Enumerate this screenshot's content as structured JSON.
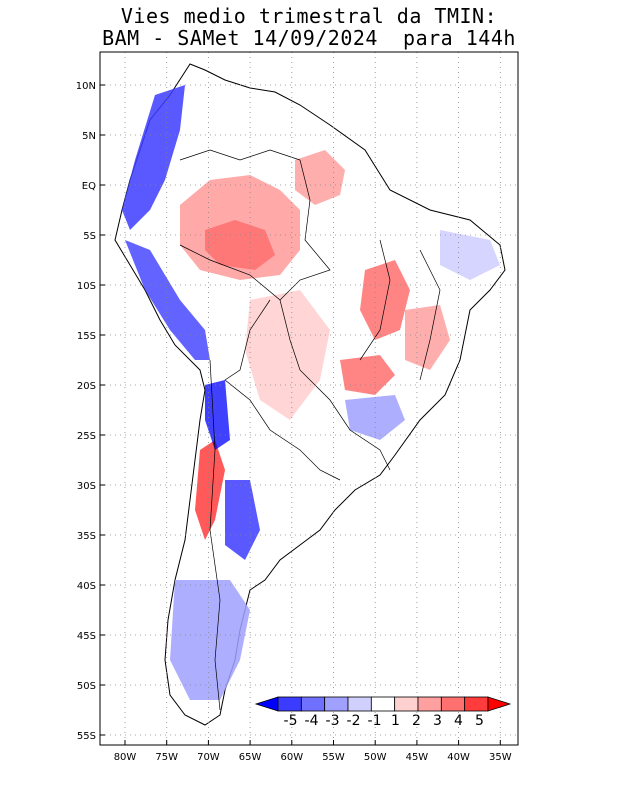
{
  "title": {
    "line1": "Vies medio trimestral da TMIN:",
    "line2": "BAM - SAMet 14/09/2024  para 144h"
  },
  "map": {
    "region": "South America",
    "lat_labels": [
      "10N",
      "5N",
      "EQ",
      "5S",
      "10S",
      "15S",
      "20S",
      "25S",
      "30S",
      "35S",
      "40S",
      "45S",
      "50S",
      "55S"
    ],
    "lon_labels": [
      "80W",
      "75W",
      "70W",
      "65W",
      "60W",
      "55W",
      "50W",
      "45W",
      "40W",
      "35W"
    ],
    "lat_range": [
      12,
      -56
    ],
    "lon_range": [
      -83,
      -34
    ],
    "grid": "dotted"
  },
  "colorbar": {
    "labels": [
      "-5",
      "-4",
      "-3",
      "-2",
      "-1",
      "1",
      "2",
      "3",
      "4",
      "5"
    ],
    "colors": [
      "#0000ff",
      "#3c3cff",
      "#7070ff",
      "#a0a0ff",
      "#d0d0ff",
      "#ffffff",
      "#ffd0d0",
      "#ffa0a0",
      "#ff7070",
      "#ff3c3c",
      "#ff0000"
    ]
  }
}
